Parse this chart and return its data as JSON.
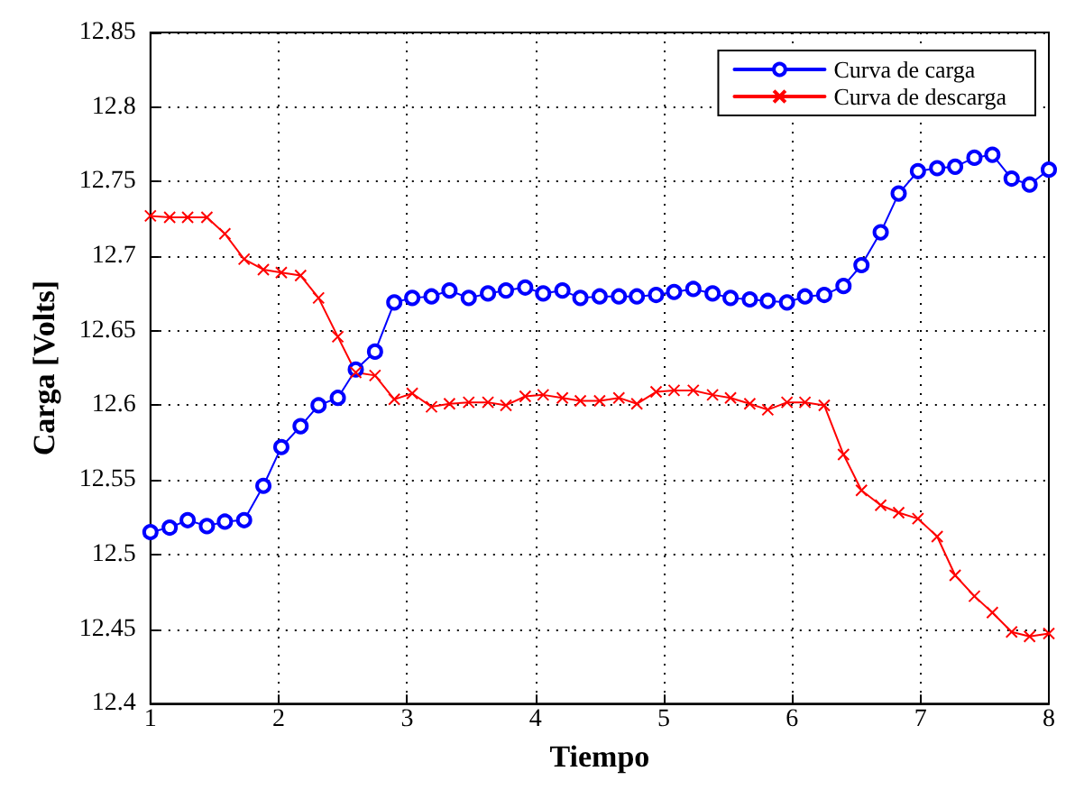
{
  "chart_data": {
    "type": "line",
    "xlabel": "Tiempo",
    "ylabel": "Carga [Volts]",
    "x": [
      1,
      1.15,
      1.29,
      1.44,
      1.58,
      1.73,
      1.88,
      2.02,
      2.17,
      2.31,
      2.46,
      2.6,
      2.75,
      2.9,
      3.04,
      3.19,
      3.33,
      3.48,
      3.63,
      3.77,
      3.92,
      4.06,
      4.21,
      4.35,
      4.5,
      4.65,
      4.79,
      4.94,
      5.08,
      5.23,
      5.38,
      5.52,
      5.67,
      5.81,
      5.96,
      6.1,
      6.25,
      6.4,
      6.54,
      6.69,
      6.83,
      6.98,
      7.13,
      7.27,
      7.42,
      7.56,
      7.71,
      7.85,
      8
    ],
    "series": [
      {
        "name": "Curva de carga",
        "color": "#0000ff",
        "marker": "circle",
        "values": [
          12.515,
          12.518,
          12.523,
          12.519,
          12.522,
          12.523,
          12.546,
          12.572,
          12.586,
          12.6,
          12.605,
          12.624,
          12.636,
          12.669,
          12.672,
          12.673,
          12.677,
          12.672,
          12.675,
          12.677,
          12.679,
          12.675,
          12.677,
          12.672,
          12.673,
          12.673,
          12.673,
          12.674,
          12.676,
          12.678,
          12.675,
          12.672,
          12.671,
          12.67,
          12.669,
          12.673,
          12.674,
          12.68,
          12.694,
          12.716,
          12.742,
          12.757,
          12.759,
          12.76,
          12.766,
          12.768,
          12.752,
          12.748,
          12.758
        ]
      },
      {
        "name": "Curva de descarga",
        "color": "#ff0000",
        "marker": "cross",
        "values": [
          12.727,
          12.726,
          12.726,
          12.726,
          12.715,
          12.698,
          12.691,
          12.689,
          12.687,
          12.672,
          12.646,
          12.622,
          12.62,
          12.604,
          12.608,
          12.599,
          12.601,
          12.602,
          12.602,
          12.6,
          12.606,
          12.607,
          12.605,
          12.603,
          12.603,
          12.605,
          12.601,
          12.609,
          12.61,
          12.61,
          12.607,
          12.605,
          12.601,
          12.597,
          12.602,
          12.602,
          12.6,
          12.567,
          12.543,
          12.533,
          12.528,
          12.524,
          12.512,
          12.486,
          12.472,
          12.461,
          12.448,
          12.445,
          12.447
        ]
      }
    ],
    "xlim": [
      1,
      8
    ],
    "xticks": [
      1,
      2,
      3,
      4,
      5,
      6,
      7,
      8
    ],
    "ylim": [
      12.4,
      12.85
    ],
    "yticks": [
      12.4,
      12.45,
      12.5,
      12.55,
      12.6,
      12.65,
      12.7,
      12.75,
      12.8,
      12.85
    ],
    "grid": true,
    "legend": "top right",
    "line_style": "solid"
  }
}
